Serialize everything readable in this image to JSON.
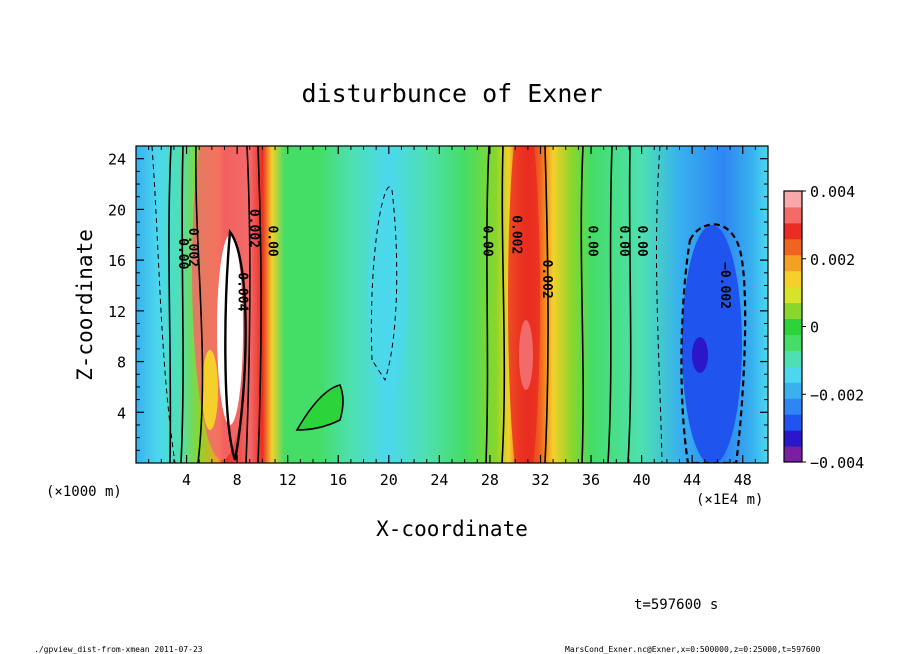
{
  "chart_data": {
    "type": "heatmap",
    "title": "disturbunce of Exner",
    "xlabel": "X-coordinate",
    "ylabel": "Z-coordinate",
    "x_unit_left": "(×1000 m)",
    "x_unit_right": "(×1E4 m)",
    "xlim": [
      0,
      50
    ],
    "ylim": [
      0,
      25
    ],
    "x_ticks": [
      "4",
      "8",
      "12",
      "16",
      "20",
      "24",
      "28",
      "32",
      "36",
      "40",
      "44",
      "48"
    ],
    "x_tick_values": [
      4,
      8,
      12,
      16,
      20,
      24,
      28,
      32,
      36,
      40,
      44,
      48
    ],
    "y_ticks": [
      "4",
      "8",
      "12",
      "16",
      "20",
      "24"
    ],
    "y_tick_values": [
      4,
      8,
      12,
      16,
      20,
      24
    ],
    "colorbar": {
      "range": [
        -0.004,
        0.004
      ],
      "labels": [
        "0.004",
        "0.002",
        "0",
        "−0.002",
        "−0.004"
      ],
      "label_values": [
        0.004,
        0.002,
        0,
        -0.002,
        -0.004
      ],
      "colors": [
        "#7a1fa2",
        "#2a17c9",
        "#1f55ee",
        "#2f86f2",
        "#38b1ef",
        "#4bd8ee",
        "#4ee0b0",
        "#44dd66",
        "#2cd33a",
        "#8ad62a",
        "#d8e22a",
        "#f5d02a",
        "#f4a022",
        "#f06420",
        "#ea2c22",
        "#f36a6a",
        "#f7a8a8"
      ]
    },
    "contour_labels": [
      {
        "text": "0.00",
        "x": 3.4,
        "z": 16.5
      },
      {
        "text": "0.002",
        "x": 4.2,
        "z": 17.0
      },
      {
        "text": "0.004",
        "x": 8.1,
        "z": 13.5
      },
      {
        "text": "0.002",
        "x": 9.0,
        "z": 18.5
      },
      {
        "text": "0.00",
        "x": 10.5,
        "z": 17.5
      },
      {
        "text": "0.00",
        "x": 27.5,
        "z": 17.5
      },
      {
        "text": "0.002",
        "x": 29.8,
        "z": 18.0
      },
      {
        "text": "0.002",
        "x": 32.2,
        "z": 14.5
      },
      {
        "text": "0.00",
        "x": 35.8,
        "z": 17.5
      },
      {
        "text": "0.00",
        "x": 38.3,
        "z": 17.5
      },
      {
        "text": "0.00",
        "x": 39.7,
        "z": 17.5
      },
      {
        "text": "−0.002",
        "x": 46.3,
        "z": 14.0
      }
    ]
  },
  "footer": {
    "time": "t=597600 s",
    "left": "./gpview_dist-from-xmean  2011-07-23",
    "right": "MarsCond_Exner.nc@Exner,x=0:500000,z=0:25000,t=597600"
  }
}
